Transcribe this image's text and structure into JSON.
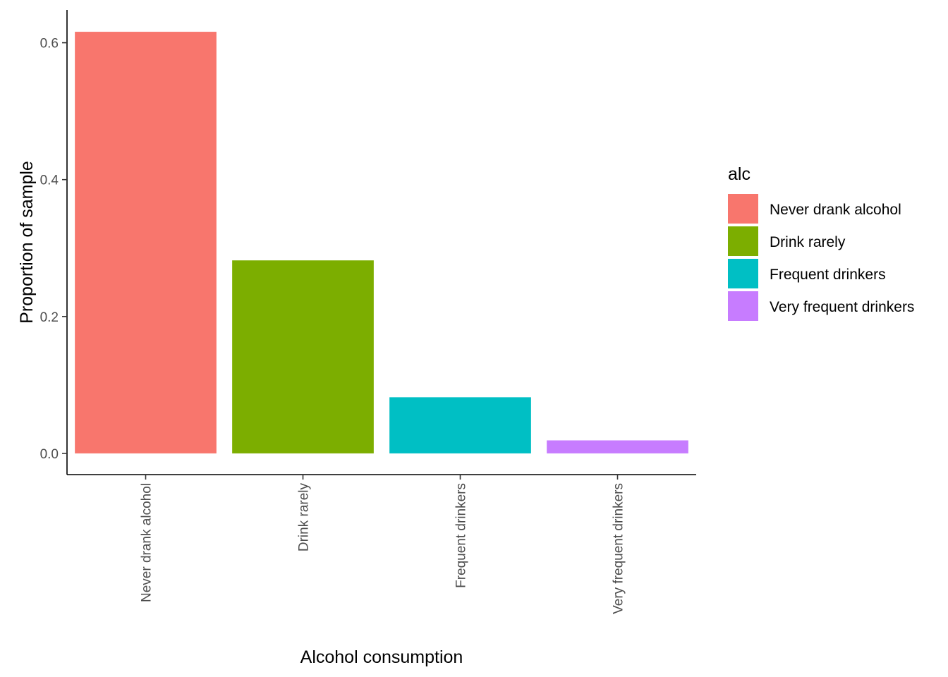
{
  "chart_data": {
    "type": "bar",
    "categories": [
      "Never drank alcohol",
      "Drink rarely",
      "Frequent drinkers",
      "Very frequent drinkers"
    ],
    "values": [
      0.616,
      0.282,
      0.082,
      0.019
    ],
    "colors": [
      "#F8766D",
      "#7CAE00",
      "#00BFC4",
      "#C77CFF"
    ],
    "xlabel": "Alcohol consumption",
    "ylabel": "Proportion of sample",
    "ylim": [
      -0.031,
      0.648
    ],
    "yticks": [
      0.0,
      0.2,
      0.4,
      0.6
    ],
    "ytick_labels": [
      "0.0",
      "0.2",
      "0.4",
      "0.6"
    ],
    "legend": {
      "title": "alc",
      "placement": "right",
      "entries": [
        "Never drank alcohol",
        "Drink rarely",
        "Frequent drinkers",
        "Very frequent drinkers"
      ]
    },
    "grid": false,
    "x_tick_rotation": 90
  }
}
